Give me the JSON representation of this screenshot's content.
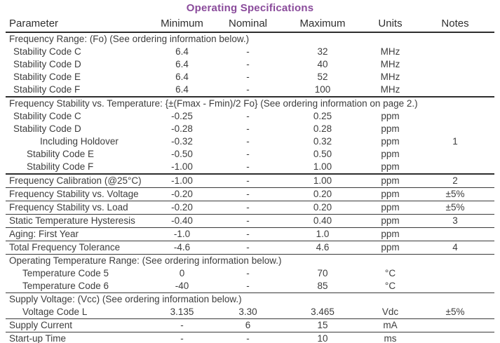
{
  "title": "Operating Specifications",
  "colors": {
    "title": "#8a4b9b",
    "text": "#3d3d3d",
    "rule": "#2e2e2e"
  },
  "columns": [
    "Parameter",
    "Minimum",
    "Nominal",
    "Maximum",
    "Units",
    "Notes"
  ],
  "rows": [
    {
      "type": "section",
      "label": "Frequency Range: (Fo) (See ordering information below.)"
    },
    {
      "type": "data",
      "indent": 1,
      "param": "Stability Code C",
      "min": "6.4",
      "nom": "-",
      "max": "32",
      "units": "MHz",
      "notes": ""
    },
    {
      "type": "data",
      "indent": 1,
      "param": "Stability Code D",
      "min": "6.4",
      "nom": "-",
      "max": "40",
      "units": "MHz",
      "notes": ""
    },
    {
      "type": "data",
      "indent": 1,
      "param": "Stability Code E",
      "min": "6.4",
      "nom": "-",
      "max": "52",
      "units": "MHz",
      "notes": ""
    },
    {
      "type": "data",
      "indent": 1,
      "param": "Stability Code F",
      "min": "6.4",
      "nom": "-",
      "max": "100",
      "units": "MHz",
      "notes": "",
      "rule": "thick"
    },
    {
      "type": "section",
      "label": "Frequency Stability vs. Temperature: {±(Fmax - Fmin)/2 Fo} (See ordering information on page 2.)"
    },
    {
      "type": "data",
      "indent": 1,
      "param": "Stability Code C",
      "min": "-0.25",
      "nom": "-",
      "max": "0.25",
      "units": "ppm",
      "notes": ""
    },
    {
      "type": "data",
      "indent": 1,
      "param": "Stability Code D",
      "min": "-0.28",
      "nom": "-",
      "max": "0.28",
      "units": "ppm",
      "notes": ""
    },
    {
      "type": "data",
      "indent": 4,
      "param": "Including Holdover",
      "min": "-0.32",
      "nom": "-",
      "max": "0.32",
      "units": "ppm",
      "notes": "1"
    },
    {
      "type": "data",
      "indent": 3,
      "param": "Stability Code E",
      "min": "-0.50",
      "nom": "-",
      "max": "0.50",
      "units": "ppm",
      "notes": ""
    },
    {
      "type": "data",
      "indent": 3,
      "param": "Stability Code F",
      "min": "-1.00",
      "nom": "-",
      "max": "1.00",
      "units": "ppm",
      "notes": "",
      "rule": "thick"
    },
    {
      "type": "data",
      "indent": 0,
      "param": "Frequency Calibration (@25°C)",
      "min": "-1.00",
      "nom": "-",
      "max": "1.00",
      "units": "ppm",
      "notes": "2",
      "rule": "thin"
    },
    {
      "type": "data",
      "indent": 0,
      "param": "Frequency Stability vs. Voltage",
      "min": "-0.20",
      "nom": "-",
      "max": "0.20",
      "units": "ppm",
      "notes": "±5%",
      "rule": "thin"
    },
    {
      "type": "data",
      "indent": 0,
      "param": "Frequency Stability vs. Load",
      "min": "-0.20",
      "nom": "-",
      "max": "0.20",
      "units": "ppm",
      "notes": "±5%",
      "rule": "thin"
    },
    {
      "type": "data",
      "indent": 0,
      "param": "Static Temperature Hysteresis",
      "min": "-0.40",
      "nom": "-",
      "max": "0.40",
      "units": "ppm",
      "notes": "3",
      "rule": "thin"
    },
    {
      "type": "data",
      "indent": 0,
      "param": "Aging: First Year",
      "min": "-1.0",
      "nom": "-",
      "max": "1.0",
      "units": "ppm",
      "notes": "",
      "rule": "thin"
    },
    {
      "type": "data",
      "indent": 0,
      "param": "Total Frequency Tolerance",
      "min": "-4.6",
      "nom": "-",
      "max": "4.6",
      "units": "ppm",
      "notes": "4",
      "rule": "thin"
    },
    {
      "type": "section",
      "label": "Operating Temperature Range: (See ordering information below.)"
    },
    {
      "type": "data",
      "indent": 2,
      "param": "Temperature Code 5",
      "min": "0",
      "nom": "-",
      "max": "70",
      "units": "°C",
      "notes": ""
    },
    {
      "type": "data",
      "indent": 2,
      "param": "Temperature Code 6",
      "min": "-40",
      "nom": "-",
      "max": "85",
      "units": "°C",
      "notes": "",
      "rule": "thin"
    },
    {
      "type": "section",
      "label": "Supply Voltage: (Vcc) (See ordering information below.)"
    },
    {
      "type": "data",
      "indent": 2,
      "param": "Voltage Code L",
      "min": "3.135",
      "nom": "3.30",
      "max": "3.465",
      "units": "Vdc",
      "notes": "±5%",
      "rule": "thin"
    },
    {
      "type": "data",
      "indent": 0,
      "param": "Supply Current",
      "min": "-",
      "nom": "6",
      "max": "15",
      "units": "mA",
      "notes": "",
      "rule": "thin"
    },
    {
      "type": "data",
      "indent": 0,
      "param": "Start-up Time",
      "min": "-",
      "nom": "-",
      "max": "10",
      "units": "ms",
      "notes": "",
      "rule": "thin"
    }
  ]
}
